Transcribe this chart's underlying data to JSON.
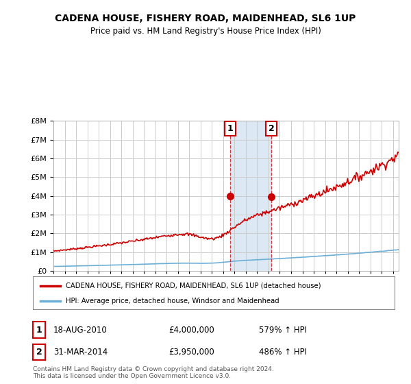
{
  "title": "CADENA HOUSE, FISHERY ROAD, MAIDENHEAD, SL6 1UP",
  "subtitle": "Price paid vs. HM Land Registry's House Price Index (HPI)",
  "background_color": "#ffffff",
  "plot_bg_color": "#ffffff",
  "grid_color": "#cccccc",
  "highlight_color": "#dce9f5",
  "sale1_year": 2010.63,
  "sale2_year": 2014.25,
  "sale1_price": 4000000,
  "sale2_price": 3950000,
  "ylim_max": 8000000,
  "hpi_line_color": "#6baed6",
  "price_line_color": "#cc0000",
  "legend1": "CADENA HOUSE, FISHERY ROAD, MAIDENHEAD, SL6 1UP (detached house)",
  "legend2": "HPI: Average price, detached house, Windsor and Maidenhead",
  "table_row1": [
    "1",
    "18-AUG-2010",
    "£4,000,000",
    "579% ↑ HPI"
  ],
  "table_row2": [
    "2",
    "31-MAR-2014",
    "£3,950,000",
    "486% ↑ HPI"
  ],
  "footer": "Contains HM Land Registry data © Crown copyright and database right 2024.\nThis data is licensed under the Open Government Licence v3.0."
}
